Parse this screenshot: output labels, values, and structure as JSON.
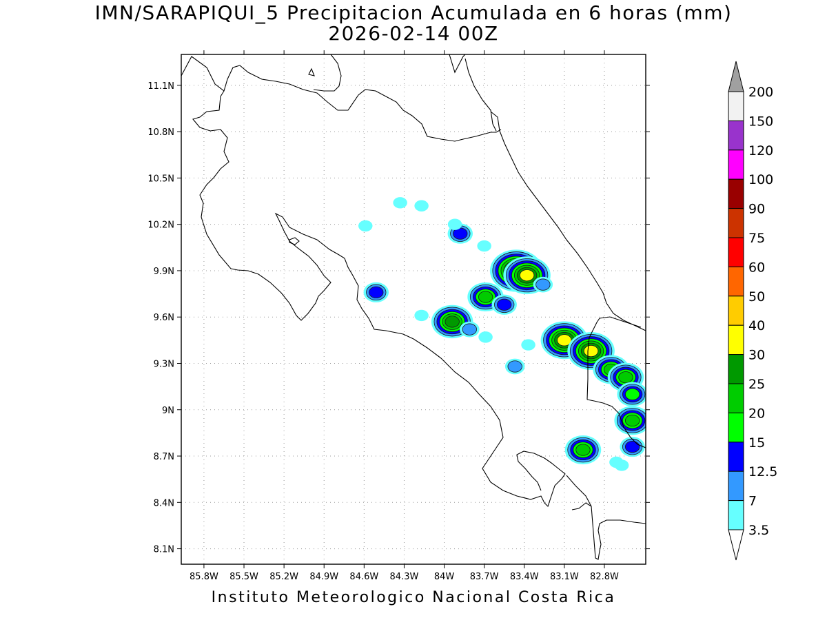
{
  "title": "IMN/SARAPIQUI_5 Precipitacion Acumulada en 6 horas (mm)",
  "subtitle": "2026-02-14 00Z",
  "footer": "Instituto Meteorologico Nacional Costa Rica",
  "map": {
    "lon_range": [
      -85.97,
      -82.49
    ],
    "lat_range": [
      8.0,
      11.3
    ],
    "lon_ticks": [
      {
        "value": -85.8,
        "label": "85.8W"
      },
      {
        "value": -85.5,
        "label": "85.5W"
      },
      {
        "value": -85.2,
        "label": "85.2W"
      },
      {
        "value": -84.9,
        "label": "84.9W"
      },
      {
        "value": -84.6,
        "label": "84.6W"
      },
      {
        "value": -84.3,
        "label": "84.3W"
      },
      {
        "value": -84.0,
        "label": "84W"
      },
      {
        "value": -83.7,
        "label": "83.7W"
      },
      {
        "value": -83.4,
        "label": "83.4W"
      },
      {
        "value": -83.1,
        "label": "83.1W"
      },
      {
        "value": -82.8,
        "label": "82.8W"
      }
    ],
    "lat_ticks": [
      {
        "value": 11.1,
        "label": "11.1N"
      },
      {
        "value": 10.8,
        "label": "10.8N"
      },
      {
        "value": 10.5,
        "label": "10.5N"
      },
      {
        "value": 10.2,
        "label": "10.2N"
      },
      {
        "value": 9.9,
        "label": "9.9N"
      },
      {
        "value": 9.6,
        "label": "9.6N"
      },
      {
        "value": 9.3,
        "label": "9.3N"
      },
      {
        "value": 9.0,
        "label": "9N"
      },
      {
        "value": 8.7,
        "label": "8.7N"
      },
      {
        "value": 8.4,
        "label": "8.4N"
      },
      {
        "value": 8.1,
        "label": "8.1N"
      }
    ],
    "grid": "dotted"
  },
  "colorbar": {
    "levels": [
      "200",
      "150",
      "120",
      "100",
      "90",
      "75",
      "60",
      "50",
      "40",
      "30",
      "25",
      "20",
      "15",
      "12.5",
      "7",
      "3.5"
    ],
    "colors_top_to_bottom": [
      "#f2f2f2",
      "#9933cc",
      "#ff00ff",
      "#990000",
      "#cc3300",
      "#ff0000",
      "#ff6600",
      "#ffcc00",
      "#ffff00",
      "#009900",
      "#00cc00",
      "#00ff00",
      "#0000ff",
      "#3399ff",
      "#66ffff"
    ],
    "over_color": "#a0a0a0",
    "under_color": "#ffffff"
  },
  "precip_cells": [
    {
      "lon": -83.88,
      "lat": 10.14,
      "mm": 12.5
    },
    {
      "lon": -83.92,
      "lat": 10.2,
      "mm": 3.5
    },
    {
      "lon": -83.7,
      "lat": 10.06,
      "mm": 3.5
    },
    {
      "lon": -84.17,
      "lat": 10.32,
      "mm": 3.5
    },
    {
      "lon": -84.33,
      "lat": 10.34,
      "mm": 3.5
    },
    {
      "lon": -84.59,
      "lat": 10.19,
      "mm": 3.5
    },
    {
      "lon": -84.51,
      "lat": 9.76,
      "mm": 12.5
    },
    {
      "lon": -84.17,
      "lat": 9.61,
      "mm": 3.5
    },
    {
      "lon": -83.46,
      "lat": 9.9,
      "mm": 40
    },
    {
      "lon": -83.38,
      "lat": 9.87,
      "mm": 30
    },
    {
      "lon": -83.26,
      "lat": 9.81,
      "mm": 7
    },
    {
      "lon": -83.69,
      "lat": 9.73,
      "mm": 20
    },
    {
      "lon": -83.55,
      "lat": 9.68,
      "mm": 12.5
    },
    {
      "lon": -83.94,
      "lat": 9.57,
      "mm": 25
    },
    {
      "lon": -83.81,
      "lat": 9.52,
      "mm": 7
    },
    {
      "lon": -83.69,
      "lat": 9.47,
      "mm": 3.5
    },
    {
      "lon": -83.47,
      "lat": 9.28,
      "mm": 7
    },
    {
      "lon": -83.37,
      "lat": 9.42,
      "mm": 3.5
    },
    {
      "lon": -83.1,
      "lat": 9.45,
      "mm": 30
    },
    {
      "lon": -82.9,
      "lat": 9.38,
      "mm": 30
    },
    {
      "lon": -82.75,
      "lat": 9.26,
      "mm": 20
    },
    {
      "lon": -82.64,
      "lat": 9.21,
      "mm": 20
    },
    {
      "lon": -82.59,
      "lat": 9.1,
      "mm": 15
    },
    {
      "lon": -82.59,
      "lat": 8.93,
      "mm": 20
    },
    {
      "lon": -82.59,
      "lat": 8.76,
      "mm": 12.5
    },
    {
      "lon": -82.96,
      "lat": 8.74,
      "mm": 20
    },
    {
      "lon": -82.71,
      "lat": 8.66,
      "mm": 3.5
    },
    {
      "lon": -82.67,
      "lat": 8.64,
      "mm": 3.5
    }
  ]
}
